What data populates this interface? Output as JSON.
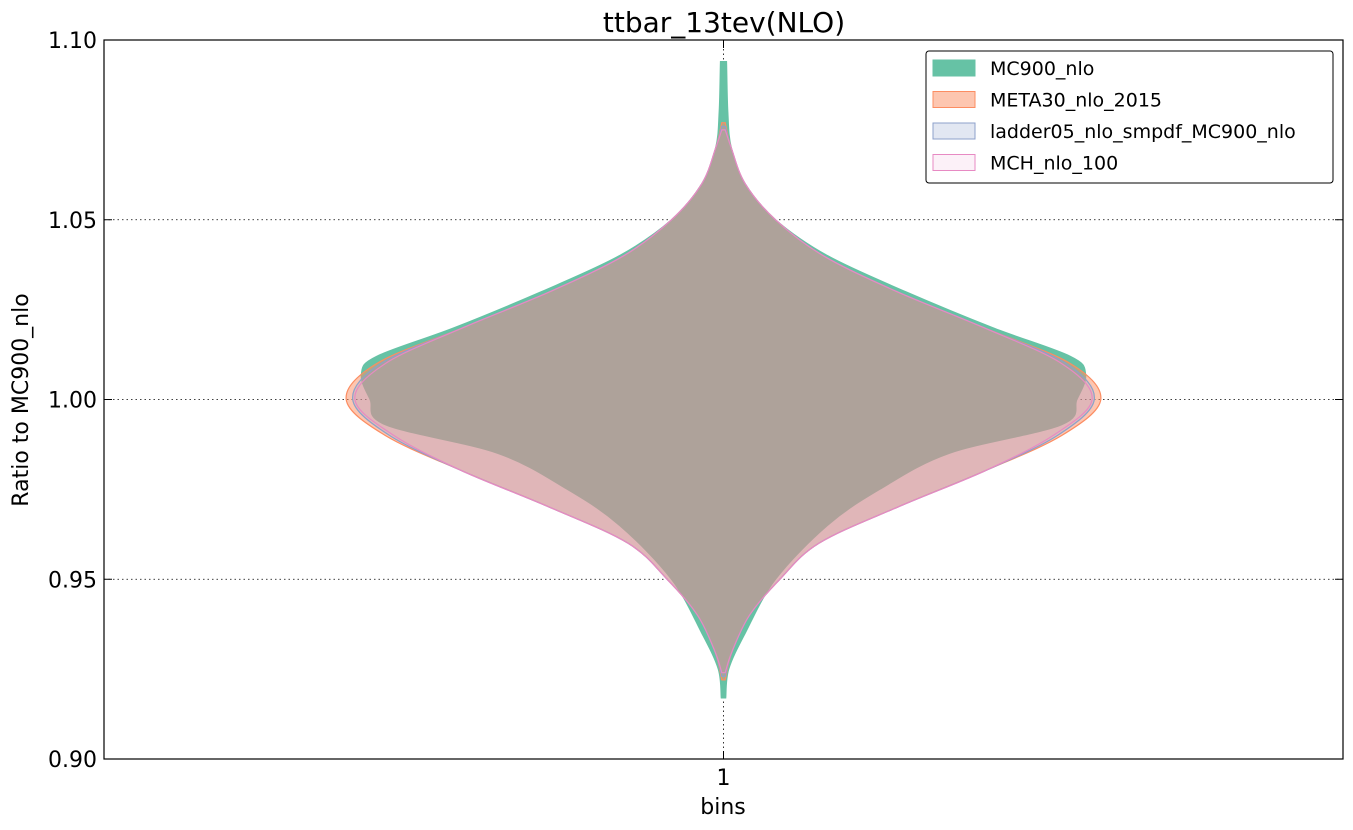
{
  "chart_data": {
    "type": "violin",
    "title": "ttbar_13tev(NLO)",
    "xlabel": "bins",
    "ylabel": "Ratio to MC900_nlo",
    "categories": [
      "1"
    ],
    "ylim": [
      0.9,
      1.1
    ],
    "yticks": [
      "0.90",
      "0.95",
      "1.00",
      "1.05",
      "1.10"
    ],
    "grid": true,
    "legend_position": "top-right",
    "max_half_width": 0.87,
    "series": [
      {
        "name": "MC900_nlo",
        "color": "#66c2a5",
        "fill_opacity": 1.0,
        "profile": [
          [
            0.917,
            0.005
          ],
          [
            0.925,
            0.012
          ],
          [
            0.935,
            0.05
          ],
          [
            0.95,
            0.12
          ],
          [
            0.965,
            0.24
          ],
          [
            0.975,
            0.36
          ],
          [
            0.985,
            0.52
          ],
          [
            0.993,
            0.78
          ],
          [
            1.0,
            0.815
          ],
          [
            1.007,
            0.835
          ],
          [
            1.012,
            0.8
          ],
          [
            1.02,
            0.62
          ],
          [
            1.03,
            0.42
          ],
          [
            1.04,
            0.24
          ],
          [
            1.05,
            0.12
          ],
          [
            1.06,
            0.05
          ],
          [
            1.07,
            0.018
          ],
          [
            1.08,
            0.01
          ],
          [
            1.094,
            0.007
          ]
        ]
      },
      {
        "name": "META30_nlo_2015",
        "color": "#fc8d62",
        "fill_opacity": 0.5,
        "profile": [
          [
            0.922,
            0.004
          ],
          [
            0.93,
            0.02
          ],
          [
            0.94,
            0.06
          ],
          [
            0.95,
            0.13
          ],
          [
            0.96,
            0.22
          ],
          [
            0.97,
            0.4
          ],
          [
            0.98,
            0.6
          ],
          [
            0.99,
            0.78
          ],
          [
            1.0,
            0.87
          ],
          [
            1.01,
            0.8
          ],
          [
            1.02,
            0.6
          ],
          [
            1.03,
            0.4
          ],
          [
            1.04,
            0.23
          ],
          [
            1.05,
            0.12
          ],
          [
            1.06,
            0.05
          ],
          [
            1.07,
            0.018
          ],
          [
            1.077,
            0.004
          ]
        ]
      },
      {
        "name": "ladder05_nlo_smpdf_MC900_nlo",
        "color": "#8da0cb",
        "fill_opacity": 0.25,
        "profile": [
          [
            0.923,
            0.004
          ],
          [
            0.93,
            0.02
          ],
          [
            0.94,
            0.06
          ],
          [
            0.95,
            0.13
          ],
          [
            0.96,
            0.22
          ],
          [
            0.97,
            0.4
          ],
          [
            0.98,
            0.6
          ],
          [
            0.99,
            0.77
          ],
          [
            1.0,
            0.855
          ],
          [
            1.01,
            0.79
          ],
          [
            1.02,
            0.6
          ],
          [
            1.03,
            0.4
          ],
          [
            1.04,
            0.23
          ],
          [
            1.05,
            0.12
          ],
          [
            1.06,
            0.05
          ],
          [
            1.07,
            0.018
          ],
          [
            1.076,
            0.004
          ]
        ]
      },
      {
        "name": "MCH_nlo_100",
        "color": "#e78ac3",
        "fill_opacity": 0.12,
        "profile": [
          [
            0.924,
            0.004
          ],
          [
            0.93,
            0.02
          ],
          [
            0.94,
            0.06
          ],
          [
            0.95,
            0.13
          ],
          [
            0.96,
            0.22
          ],
          [
            0.97,
            0.4
          ],
          [
            0.98,
            0.6
          ],
          [
            0.99,
            0.76
          ],
          [
            1.0,
            0.85
          ],
          [
            1.01,
            0.78
          ],
          [
            1.02,
            0.6
          ],
          [
            1.03,
            0.4
          ],
          [
            1.04,
            0.23
          ],
          [
            1.05,
            0.12
          ],
          [
            1.06,
            0.05
          ],
          [
            1.07,
            0.018
          ],
          [
            1.075,
            0.004
          ]
        ]
      }
    ]
  }
}
